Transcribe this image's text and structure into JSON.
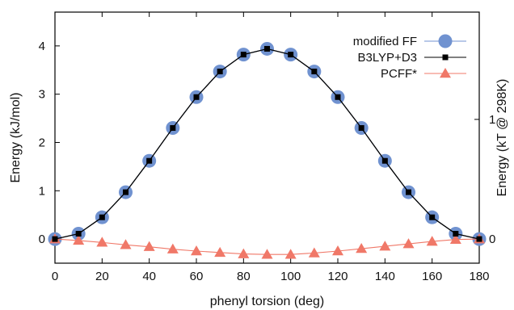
{
  "chart_data": {
    "type": "line",
    "xlabel": "phenyl torsion (deg)",
    "ylabel": "Energy (kJ/mol)",
    "y2label": "Energy (kT @ 298K)",
    "xlim": [
      0,
      180
    ],
    "ylim": [
      -0.5,
      4.7
    ],
    "xticks": [
      0,
      20,
      40,
      60,
      80,
      100,
      120,
      140,
      160,
      180
    ],
    "yticks": [
      0,
      1,
      2,
      3,
      4
    ],
    "y2ticks": [
      0,
      1
    ],
    "y2_scale_kJ_per_unit": 2.4777,
    "grid": false,
    "legend_position": "top-right",
    "x": [
      0,
      10,
      20,
      30,
      40,
      50,
      60,
      70,
      80,
      90,
      100,
      110,
      120,
      130,
      140,
      150,
      160,
      170,
      180
    ],
    "series": [
      {
        "name": "modified FF",
        "color": "#7092d0",
        "marker": "circle",
        "line": true,
        "values": [
          0.0,
          0.11,
          0.45,
          0.97,
          1.62,
          2.3,
          2.94,
          3.47,
          3.82,
          3.94,
          3.82,
          3.47,
          2.94,
          2.3,
          1.62,
          0.97,
          0.45,
          0.11,
          0.0
        ]
      },
      {
        "name": "B3LYP+D3",
        "color": "#000000",
        "marker": "square",
        "line": true,
        "values": [
          0.0,
          0.11,
          0.45,
          0.97,
          1.62,
          2.3,
          2.94,
          3.47,
          3.82,
          3.94,
          3.82,
          3.47,
          2.94,
          2.3,
          1.62,
          0.97,
          0.45,
          0.11,
          0.0
        ]
      },
      {
        "name": "PCFF*",
        "color": "#f07868",
        "marker": "triangle",
        "line": true,
        "values": [
          0.0,
          -0.03,
          -0.07,
          -0.12,
          -0.16,
          -0.21,
          -0.25,
          -0.28,
          -0.31,
          -0.32,
          -0.32,
          -0.29,
          -0.25,
          -0.2,
          -0.15,
          -0.1,
          -0.05,
          -0.01,
          0.0
        ]
      }
    ]
  }
}
